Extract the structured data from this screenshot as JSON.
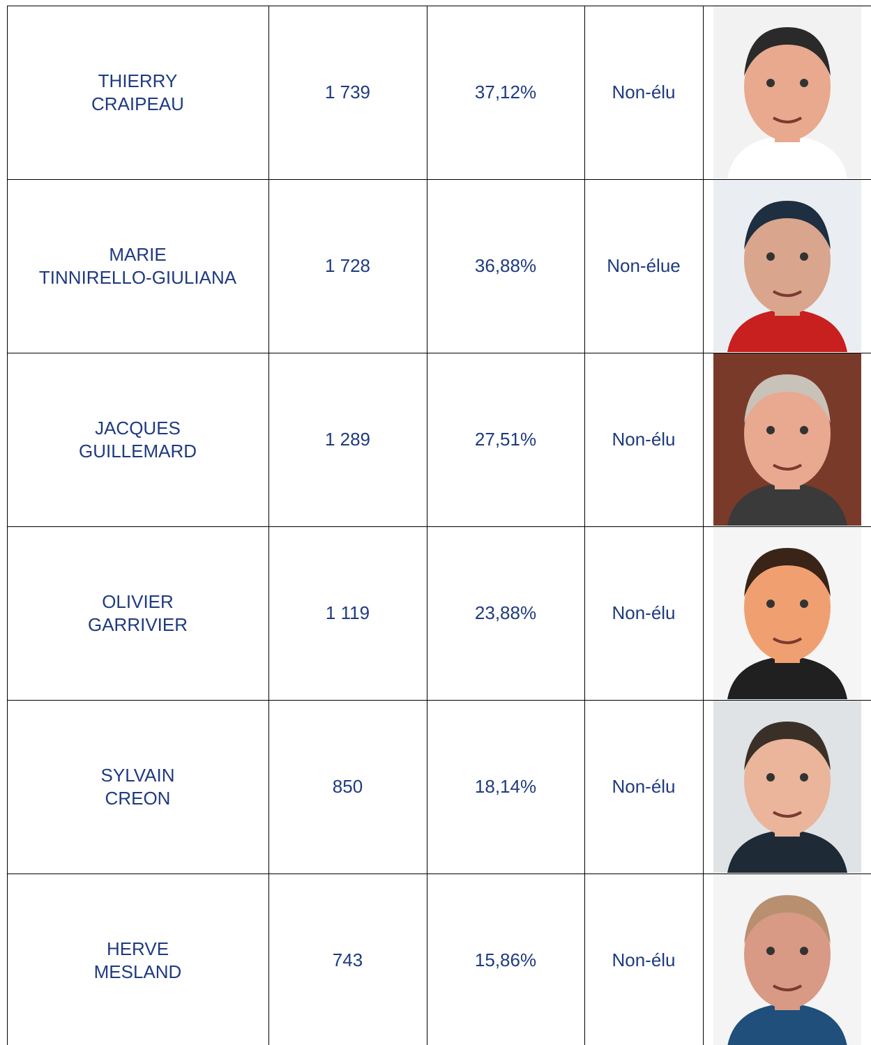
{
  "table": {
    "rows": [
      {
        "name": [
          "THIERRY",
          "CRAIPEAU"
        ],
        "votes": "1 739",
        "percent": "37,12%",
        "status": "Non-élu"
      },
      {
        "name": [
          "MARIE",
          "TINNIRELLO-GIULIANA"
        ],
        "votes": "1 728",
        "percent": "36,88%",
        "status": "Non-élue"
      },
      {
        "name": [
          "JACQUES",
          "GUILLEMARD"
        ],
        "votes": "1 289",
        "percent": "27,51%",
        "status": "Non-élu"
      },
      {
        "name": [
          "OLIVIER",
          "GARRIVIER"
        ],
        "votes": "1 119",
        "percent": "23,88%",
        "status": "Non-élu"
      },
      {
        "name": [
          "SYLVAIN",
          "CREON"
        ],
        "votes": "850",
        "percent": "18,14%",
        "status": "Non-élu"
      },
      {
        "name": [
          "HERVE",
          "MESLAND"
        ],
        "votes": "743",
        "percent": "15,86%",
        "status": "Non-élu"
      }
    ]
  }
}
